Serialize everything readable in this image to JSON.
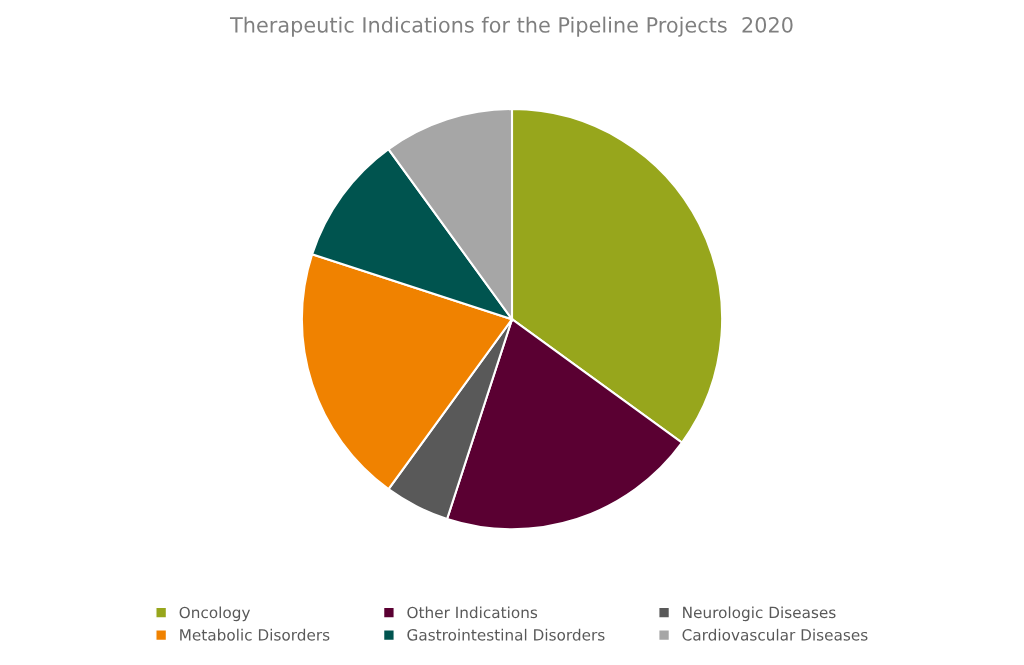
{
  "chart_data": {
    "type": "pie",
    "title": "Therapeutic Indications for the Pipeline Projects  2020",
    "categories": [
      "Oncology",
      "Other Indications",
      "Neurologic Diseases",
      "Metabolic Disorders",
      "Gastrointestinal Disorders",
      "Cardiovascular Diseases"
    ],
    "values": [
      35,
      20,
      5,
      20,
      10,
      10
    ],
    "colors": [
      "#97a61c",
      "#5a0032",
      "#595959",
      "#f08200",
      "#00544f",
      "#a6a6a6"
    ],
    "legend": "bottom"
  }
}
